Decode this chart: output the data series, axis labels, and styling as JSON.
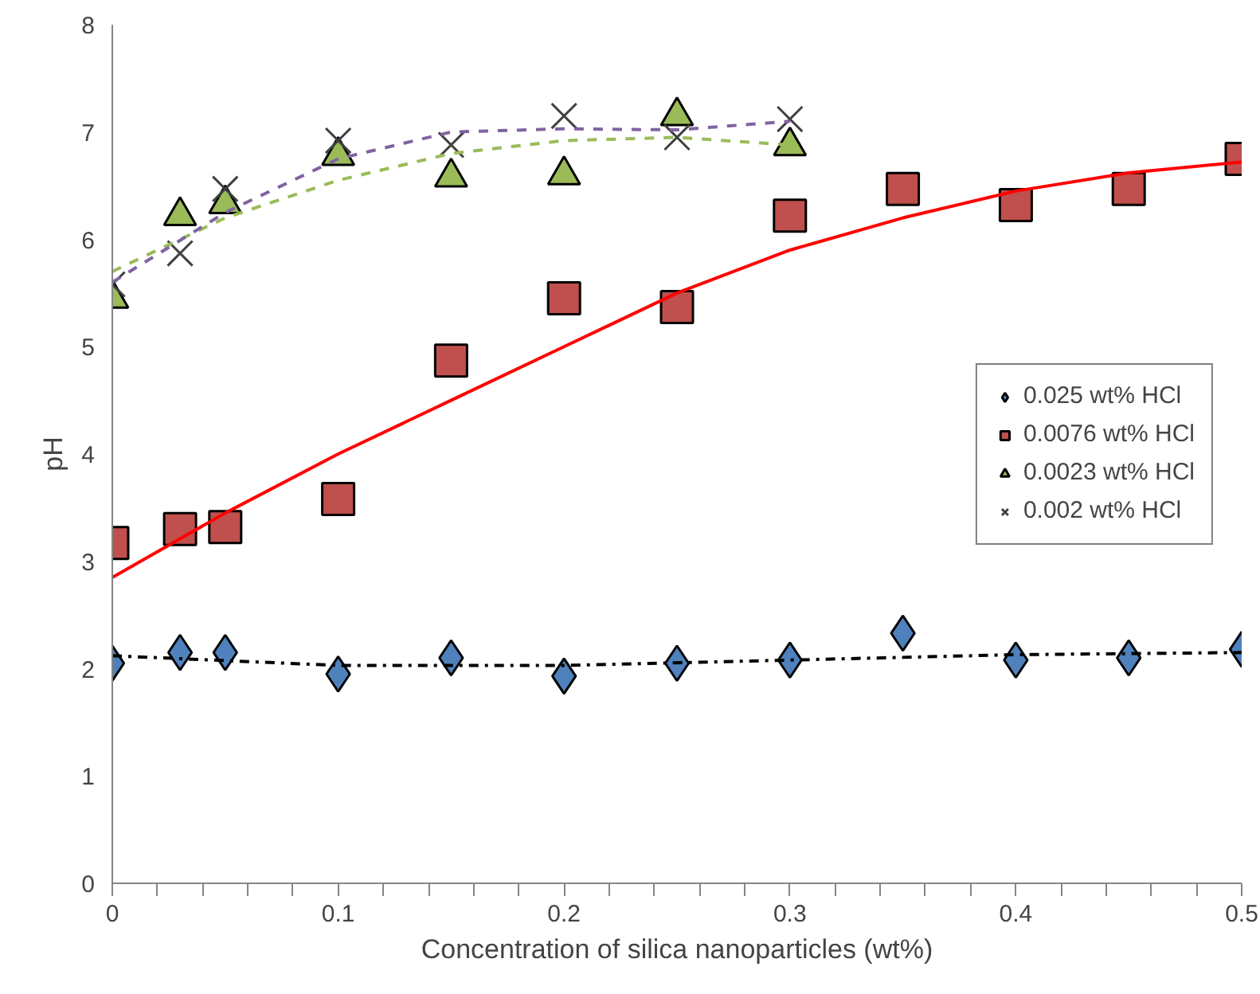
{
  "chart_data": {
    "type": "scatter",
    "xlabel": "Concentration of silica nanoparticles (wt%)",
    "ylabel": "pH",
    "xlim": [
      0,
      0.5
    ],
    "ylim": [
      0,
      8
    ],
    "yticks": [
      0,
      1,
      2,
      3,
      4,
      5,
      6,
      7,
      8
    ],
    "xticks": [
      0,
      {
        "value": 0.02,
        "label": null
      },
      {
        "value": 0.04,
        "label": null
      },
      {
        "value": 0.06,
        "label": null
      },
      {
        "value": 0.08,
        "label": null
      },
      0.1,
      {
        "value": 0.12,
        "label": null
      },
      {
        "value": 0.14,
        "label": null
      },
      {
        "value": 0.16,
        "label": null
      },
      {
        "value": 0.18,
        "label": null
      },
      0.2,
      {
        "value": 0.22,
        "label": null
      },
      {
        "value": 0.24,
        "label": null
      },
      {
        "value": 0.26,
        "label": null
      },
      {
        "value": 0.28,
        "label": null
      },
      0.3,
      {
        "value": 0.32,
        "label": null
      },
      {
        "value": 0.34,
        "label": null
      },
      {
        "value": 0.36,
        "label": null
      },
      {
        "value": 0.38,
        "label": null
      },
      0.4,
      {
        "value": 0.42,
        "label": null
      },
      {
        "value": 0.44,
        "label": null
      },
      {
        "value": 0.46,
        "label": null
      },
      {
        "value": 0.48,
        "label": null
      },
      0.5
    ],
    "grid": false,
    "legend": "right",
    "series": [
      {
        "name": "0.025 wt% HCl",
        "color": "#4f81bd",
        "marker": "diamond",
        "x": [
          0,
          0.03,
          0.05,
          0.1,
          0.15,
          0.2,
          0.25,
          0.3,
          0.35,
          0.4,
          0.45,
          0.5
        ],
        "values": [
          2.05,
          2.15,
          2.15,
          1.95,
          2.1,
          1.93,
          2.05,
          2.08,
          2.33,
          2.08,
          2.1,
          2.18
        ]
      },
      {
        "name": "0.0076 wt% HCl",
        "color": "#c0504d",
        "marker": "square",
        "x": [
          0,
          0.03,
          0.05,
          0.1,
          0.15,
          0.2,
          0.25,
          0.3,
          0.35,
          0.4,
          0.45,
          0.5
        ],
        "values": [
          3.17,
          3.3,
          3.32,
          3.58,
          4.87,
          5.45,
          5.37,
          6.22,
          6.47,
          6.32,
          6.47,
          6.75
        ]
      },
      {
        "name": "0.0023 wt% HCl",
        "color": "#9bbb59",
        "marker": "triangle",
        "x": [
          0,
          0.03,
          0.05,
          0.1,
          0.15,
          0.2,
          0.25,
          0.3
        ],
        "values": [
          5.45,
          6.22,
          6.33,
          6.78,
          6.58,
          6.6,
          7.15,
          6.87
        ]
      },
      {
        "name": "0.002 wt% HCl",
        "color": "#404040",
        "marker": "cross",
        "x": [
          0,
          0.03,
          0.05,
          0.1,
          0.15,
          0.2,
          0.25,
          0.3
        ],
        "values": [
          5.58,
          5.87,
          6.47,
          6.92,
          6.88,
          7.15,
          6.95,
          7.12
        ]
      },
      {
        "type": "line",
        "color": "#000000",
        "line_style": "dashdot",
        "x": [
          0,
          0.1,
          0.2,
          0.3,
          0.4,
          0.5
        ],
        "values": [
          2.12,
          2.03,
          2.03,
          2.08,
          2.13,
          2.15
        ]
      },
      {
        "type": "line",
        "color": "#ff0000",
        "line_style": "solid",
        "x": [
          0,
          0.05,
          0.1,
          0.15,
          0.2,
          0.25,
          0.3,
          0.35,
          0.4,
          0.45,
          0.5
        ],
        "values": [
          2.85,
          3.45,
          4.0,
          4.5,
          5.0,
          5.5,
          5.9,
          6.2,
          6.45,
          6.62,
          6.72
        ]
      },
      {
        "type": "line",
        "color": "#9bbb59",
        "line_style": "dashed",
        "x": [
          0,
          0.05,
          0.1,
          0.15,
          0.2,
          0.25,
          0.3
        ],
        "values": [
          5.7,
          6.2,
          6.55,
          6.8,
          6.92,
          6.95,
          6.88
        ]
      },
      {
        "type": "line",
        "color": "#8064a2",
        "line_style": "dashed",
        "x": [
          0,
          0.05,
          0.1,
          0.15,
          0.2,
          0.25,
          0.3
        ],
        "values": [
          5.6,
          6.25,
          6.75,
          7.0,
          7.03,
          7.02,
          7.1
        ]
      }
    ]
  }
}
